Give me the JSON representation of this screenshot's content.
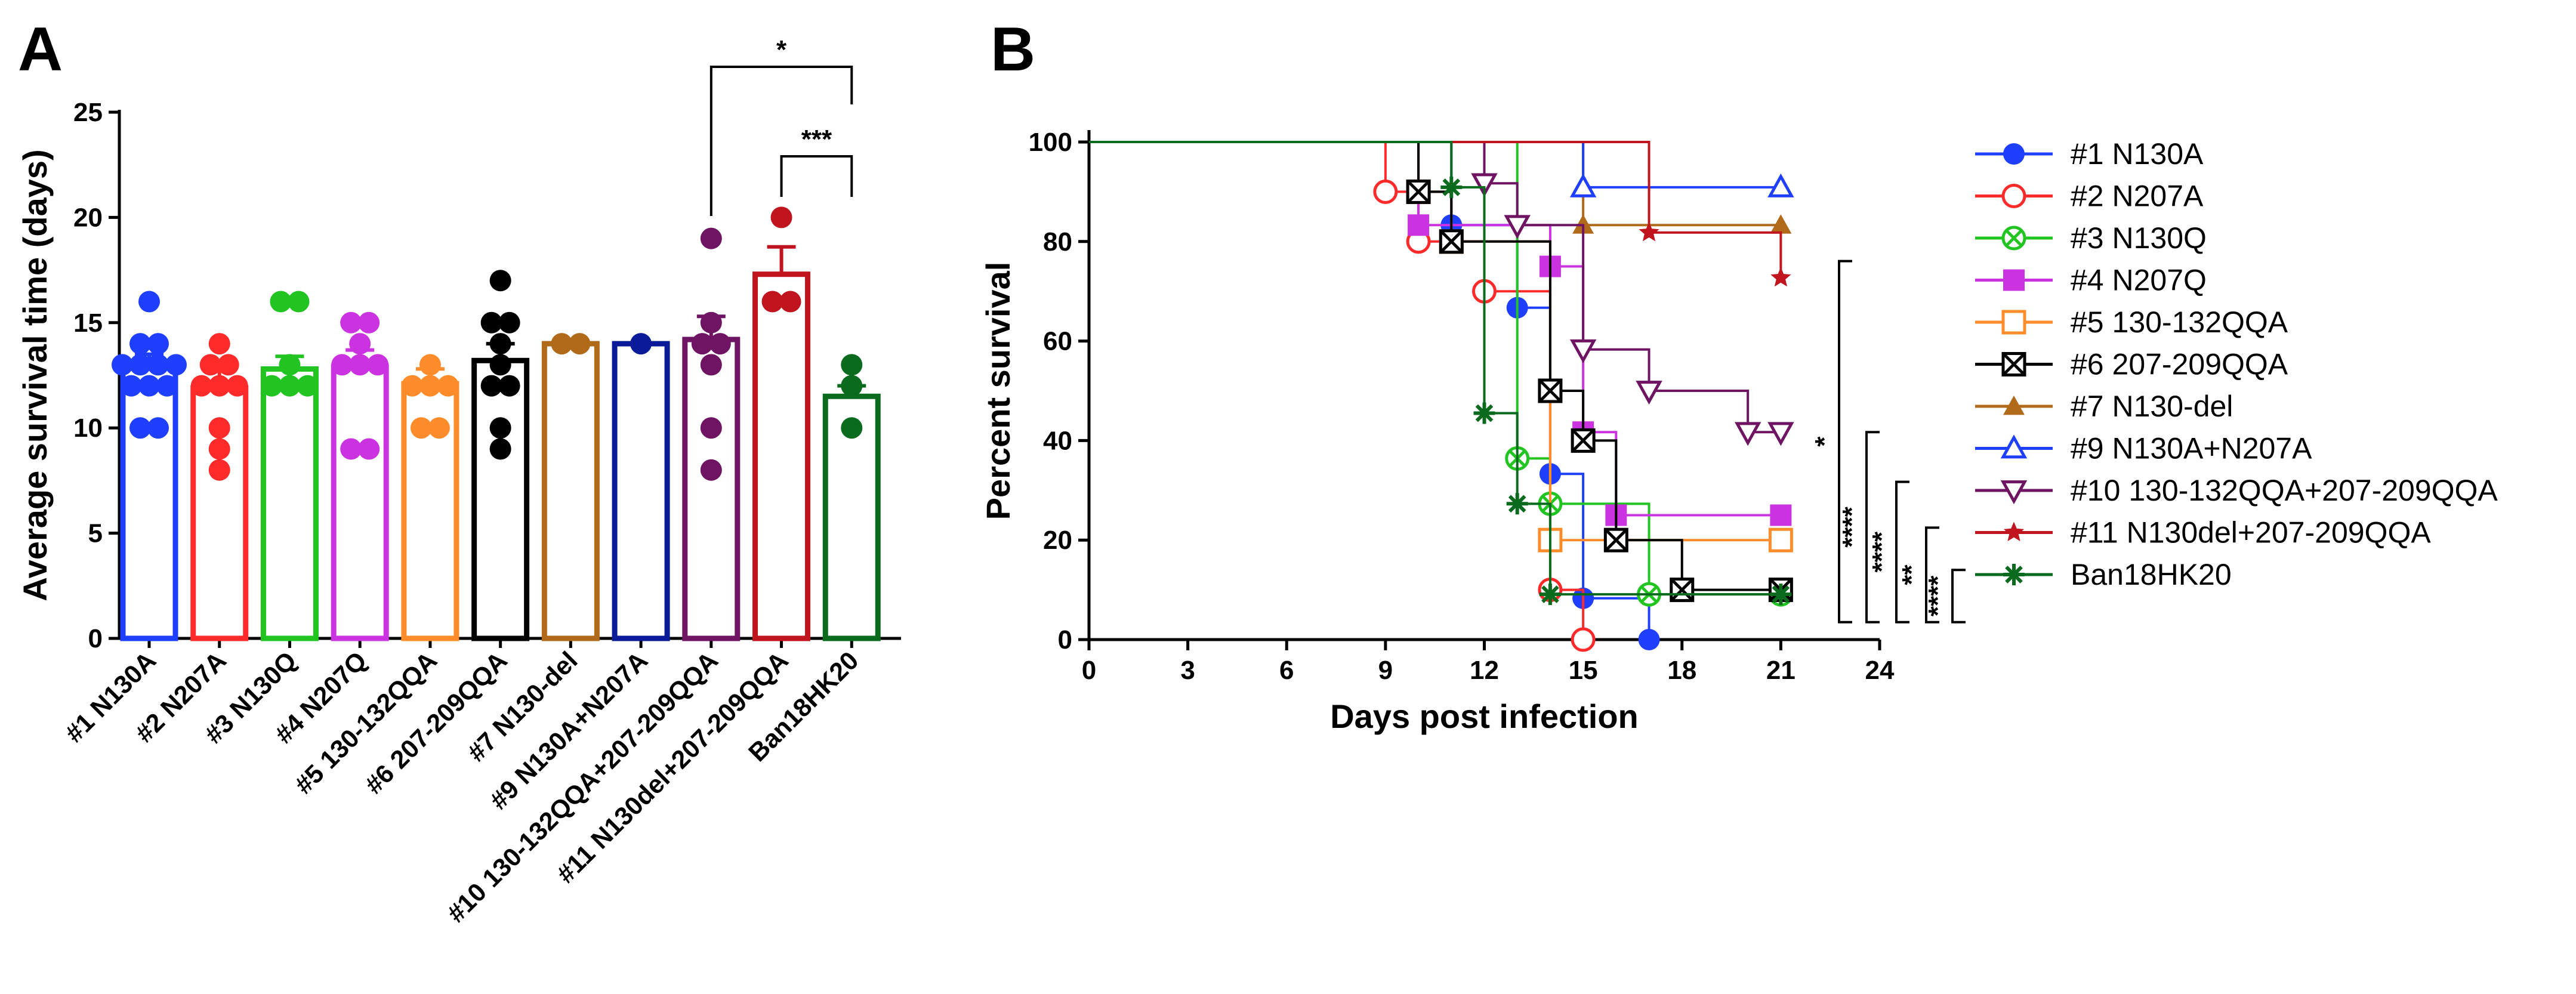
{
  "chart_data": [
    {
      "panel": "A",
      "type": "bar",
      "ylabel": "Average survival time (days)",
      "xlabel": "",
      "ylim": [
        0,
        25
      ],
      "yticks": [
        0,
        5,
        10,
        15,
        20,
        25
      ],
      "categories": [
        "#1 N130A",
        "#2 N207A",
        "#3 N130Q",
        "#4 N207Q",
        "#5 130-132QQA",
        "#6 207-209QQA",
        "#7 N130-del",
        "#9 N130A+N207A",
        "#10 130-132QQA+207-209QQA",
        "#11 N130del+207-209QQA",
        "Ban18HK20"
      ],
      "colors": [
        "#1f3fff",
        "#ff2a2a",
        "#22c422",
        "#cc33e0",
        "#ff8c2a",
        "#000000",
        "#b06a1a",
        "#0a1a99",
        "#6e1463",
        "#c0141e",
        "#0a6b1e"
      ],
      "means": [
        12.9,
        11.9,
        12.8,
        12.9,
        12.1,
        13.2,
        14.0,
        14.0,
        14.2,
        17.3,
        11.5
      ],
      "sem": [
        0.6,
        0.8,
        0.6,
        0.8,
        0.7,
        0.8,
        0.0,
        0.0,
        1.1,
        1.3,
        0.5
      ],
      "points": [
        [
          16,
          14,
          14,
          13,
          13,
          13,
          13,
          12,
          12,
          12,
          10,
          10
        ],
        [
          14,
          13,
          13,
          12,
          12,
          12,
          10,
          9,
          8
        ],
        [
          16,
          16,
          13,
          12,
          12,
          12
        ],
        [
          15,
          15,
          14,
          13,
          13,
          13,
          9,
          9
        ],
        [
          13,
          12,
          12,
          12,
          10,
          10
        ],
        [
          17,
          15,
          15,
          14,
          13,
          12,
          12,
          10,
          9
        ],
        [
          14,
          14
        ],
        [
          14
        ],
        [
          19,
          15,
          14,
          14,
          13,
          10,
          8
        ],
        [
          20,
          16,
          16
        ],
        [
          13,
          12,
          10
        ]
      ],
      "significance": [
        {
          "label": "*",
          "from": "#10 130-132QQA+207-209QQA",
          "to": "Ban18HK20"
        },
        {
          "label": "***",
          "from": "#11 N130del+207-209QQA",
          "to": "Ban18HK20"
        }
      ]
    },
    {
      "panel": "B",
      "type": "line",
      "xlabel": "Days post infection",
      "ylabel": "Percent survival",
      "xlim": [
        0,
        24
      ],
      "ylim": [
        0,
        100
      ],
      "xticks": [
        0,
        3,
        6,
        9,
        12,
        15,
        18,
        21,
        24
      ],
      "yticks": [
        0,
        20,
        40,
        60,
        80,
        100
      ],
      "series": [
        {
          "name": "#1 N130A",
          "color": "#1f3fff",
          "marker": "circle-filled",
          "steps": [
            [
              0,
              100
            ],
            [
              11,
              83.3
            ],
            [
              13,
              66.7
            ],
            [
              14,
              33.3
            ],
            [
              15,
              8.3
            ],
            [
              17,
              0
            ]
          ],
          "markers": [
            [
              11,
              83.3
            ],
            [
              13,
              66.7
            ],
            [
              14,
              33.3
            ],
            [
              15,
              8.3
            ],
            [
              17,
              0
            ]
          ]
        },
        {
          "name": "#2 N207A",
          "color": "#ff2a2a",
          "marker": "circle-open",
          "steps": [
            [
              0,
              100
            ],
            [
              9,
              90
            ],
            [
              10,
              80
            ],
            [
              12,
              70
            ],
            [
              14,
              10
            ],
            [
              15,
              0
            ]
          ],
          "markers": [
            [
              9,
              90
            ],
            [
              10,
              80
            ],
            [
              12,
              70
            ],
            [
              14,
              10
            ],
            [
              15,
              0
            ]
          ]
        },
        {
          "name": "#3 N130Q",
          "color": "#22c422",
          "marker": "circle-cross",
          "steps": [
            [
              0,
              100
            ],
            [
              13,
              36.4
            ],
            [
              14,
              27.3
            ],
            [
              17,
              9.1
            ],
            [
              21,
              9.1
            ]
          ],
          "markers": [
            [
              13,
              36.4
            ],
            [
              14,
              27.3
            ],
            [
              17,
              9.1
            ],
            [
              21,
              9.1
            ]
          ]
        },
        {
          "name": "#4 N207Q",
          "color": "#cc33e0",
          "marker": "square-filled",
          "steps": [
            [
              0,
              100
            ],
            [
              10,
              83.3
            ],
            [
              14,
              75
            ],
            [
              15,
              41.7
            ],
            [
              16,
              25
            ],
            [
              21,
              25
            ]
          ],
          "markers": [
            [
              10,
              83.3
            ],
            [
              14,
              75
            ],
            [
              15,
              41.7
            ],
            [
              16,
              25
            ],
            [
              21,
              25
            ]
          ]
        },
        {
          "name": "#5 130-132QQA",
          "color": "#ff8c2a",
          "marker": "square-open",
          "steps": [
            [
              0,
              100
            ],
            [
              10,
              90
            ],
            [
              11,
              80
            ],
            [
              14,
              20
            ],
            [
              21,
              20
            ]
          ],
          "markers": [
            [
              10,
              90
            ],
            [
              11,
              80
            ],
            [
              14,
              20
            ],
            [
              21,
              20
            ]
          ]
        },
        {
          "name": "#6 207-209QQA",
          "color": "#000000",
          "marker": "square-cross",
          "steps": [
            [
              0,
              100
            ],
            [
              10,
              90
            ],
            [
              11,
              80
            ],
            [
              14,
              50
            ],
            [
              15,
              40
            ],
            [
              16,
              20
            ],
            [
              18,
              10
            ],
            [
              21,
              10
            ]
          ],
          "markers": [
            [
              10,
              90
            ],
            [
              11,
              80
            ],
            [
              14,
              50
            ],
            [
              15,
              40
            ],
            [
              16,
              20
            ],
            [
              18,
              10
            ],
            [
              21,
              10
            ]
          ]
        },
        {
          "name": "#7 N130-del",
          "color": "#b06a1a",
          "marker": "triangle-filled",
          "steps": [
            [
              0,
              100
            ],
            [
              15,
              83.3
            ],
            [
              21,
              83.3
            ]
          ],
          "markers": [
            [
              15,
              83.3
            ],
            [
              21,
              83.3
            ]
          ]
        },
        {
          "name": "#9 N130A+N207A",
          "color": "#1f3fff",
          "marker": "triangle-open",
          "steps": [
            [
              0,
              100
            ],
            [
              15,
              90.9
            ],
            [
              21,
              90.9
            ]
          ],
          "markers": [
            [
              15,
              90.9
            ],
            [
              21,
              90.9
            ]
          ]
        },
        {
          "name": "#10 130-132QQA+207-209QQA",
          "color": "#6e1463",
          "marker": "triangle-down-open",
          "steps": [
            [
              0,
              100
            ],
            [
              12,
              91.7
            ],
            [
              13,
              83.3
            ],
            [
              15,
              58.3
            ],
            [
              17,
              50
            ],
            [
              20,
              41.7
            ],
            [
              21,
              41.7
            ]
          ],
          "markers": [
            [
              12,
              91.7
            ],
            [
              13,
              83.3
            ],
            [
              15,
              58.3
            ],
            [
              17,
              50
            ],
            [
              20,
              41.7
            ],
            [
              21,
              41.7
            ]
          ]
        },
        {
          "name": "#11 N130del+207-209QQA",
          "color": "#c0141e",
          "marker": "star",
          "steps": [
            [
              0,
              100
            ],
            [
              17,
              81.8
            ],
            [
              21,
              72.7
            ]
          ],
          "markers": [
            [
              17,
              81.8
            ],
            [
              21,
              72.7
            ]
          ]
        },
        {
          "name": "Ban18HK20",
          "color": "#0a6b1e",
          "marker": "asterisk",
          "steps": [
            [
              0,
              100
            ],
            [
              11,
              90.9
            ],
            [
              12,
              45.5
            ],
            [
              13,
              27.3
            ],
            [
              14,
              9.1
            ],
            [
              21,
              9.1
            ]
          ],
          "markers": [
            [
              11,
              90.9
            ],
            [
              12,
              45.5
            ],
            [
              13,
              27.3
            ],
            [
              14,
              9.1
            ],
            [
              21,
              9.1
            ]
          ]
        }
      ],
      "significance": [
        {
          "label": "*",
          "from": "#10 130-132QQA+207-209QQA",
          "to": "Ban18HK20"
        },
        {
          "label": "****",
          "from": "#9 N130A+N207A",
          "to": "Ban18HK20"
        },
        {
          "label": "****",
          "from": "#7 N130-del",
          "to": "Ban18HK20"
        },
        {
          "label": "**",
          "from": "#4 N207Q",
          "to": "Ban18HK20"
        },
        {
          "label": "****",
          "from": "#11 N130del+207-209QQA",
          "to": "Ban18HK20"
        }
      ]
    }
  ],
  "panels": {
    "a_label": "A",
    "b_label": "B"
  }
}
